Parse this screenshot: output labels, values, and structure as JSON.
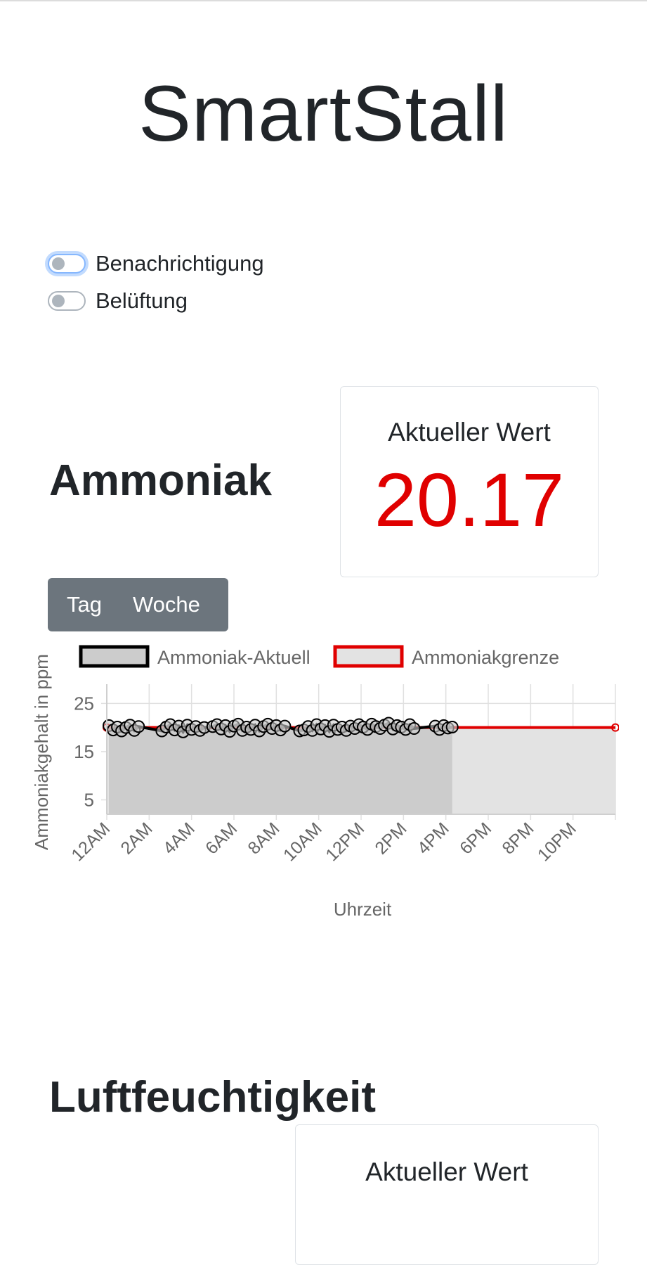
{
  "app": {
    "title": "SmartStall"
  },
  "toggles": [
    {
      "label": "Benachrichtigung",
      "checked": false,
      "focused": true
    },
    {
      "label": "Belüftung",
      "checked": false,
      "focused": false
    }
  ],
  "ammonia": {
    "title": "Ammoniak",
    "card_label": "Aktueller Wert",
    "current_value": "20.17",
    "value_color": "#e00000",
    "range_buttons": [
      "Tag",
      "Woche"
    ]
  },
  "humidity": {
    "title": "Luftfeuchtigkeit",
    "card_label": "Aktueller Wert",
    "value_color": "#1e8c1e"
  },
  "chart_data": {
    "type": "line",
    "title": "",
    "xlabel": "Uhrzeit",
    "ylabel": "Ammoniakgehalt in ppm",
    "x_tick_labels": [
      "12AM",
      "2AM",
      "4AM",
      "6AM",
      "8AM",
      "10AM",
      "12PM",
      "2PM",
      "4PM",
      "6PM",
      "8PM",
      "10PM"
    ],
    "y_ticks": [
      5,
      15,
      25
    ],
    "xlim_hours": [
      0,
      24
    ],
    "ylim": [
      2,
      29
    ],
    "grid": true,
    "legend_position": "top",
    "series": [
      {
        "name": "Ammoniak-Aktuell",
        "color": "#000000",
        "fill": "#cccccc",
        "x_hours": [
          0.1,
          0.3,
          0.5,
          0.7,
          0.9,
          1.1,
          1.3,
          1.5,
          2.6,
          2.8,
          3.0,
          3.2,
          3.4,
          3.6,
          3.8,
          4.0,
          4.2,
          4.4,
          4.6,
          5.0,
          5.2,
          5.4,
          5.6,
          5.8,
          6.0,
          6.2,
          6.4,
          6.6,
          6.8,
          7.0,
          7.2,
          7.4,
          7.6,
          7.8,
          8.0,
          8.2,
          8.4,
          9.1,
          9.3,
          9.5,
          9.7,
          9.9,
          10.1,
          10.3,
          10.5,
          10.7,
          10.9,
          11.1,
          11.3,
          11.5,
          11.7,
          11.9,
          12.1,
          12.3,
          12.5,
          12.7,
          12.9,
          13.1,
          13.3,
          13.5,
          13.7,
          13.9,
          14.1,
          14.3,
          14.5,
          15.5,
          15.7,
          15.9,
          16.1,
          16.3
        ],
        "y": [
          20.4,
          19.5,
          20.1,
          19.3,
          20.0,
          20.5,
          19.4,
          20.2,
          19.3,
          20.1,
          20.6,
          19.5,
          20.3,
          19.1,
          20.5,
          19.6,
          20.2,
          19.4,
          20.0,
          20.2,
          20.6,
          19.7,
          20.4,
          19.2,
          20.3,
          20.7,
          19.4,
          20.1,
          19.6,
          20.5,
          19.3,
          20.2,
          20.7,
          19.8,
          20.4,
          19.5,
          20.3,
          19.3,
          19.5,
          20.2,
          19.4,
          20.6,
          19.7,
          20.4,
          19.2,
          20.5,
          19.6,
          20.1,
          19.4,
          20.3,
          19.8,
          20.6,
          20.1,
          19.6,
          20.7,
          20.2,
          19.8,
          20.5,
          20.9,
          19.7,
          20.4,
          20.1,
          19.6,
          20.6,
          19.8,
          20.3,
          19.6,
          20.4,
          19.9,
          20.1
        ]
      },
      {
        "name": "Ammoniakgrenze",
        "color": "#e00000",
        "fill": "#e3e3e3",
        "x_hours": [
          0,
          24
        ],
        "y": [
          20,
          20
        ]
      }
    ]
  }
}
